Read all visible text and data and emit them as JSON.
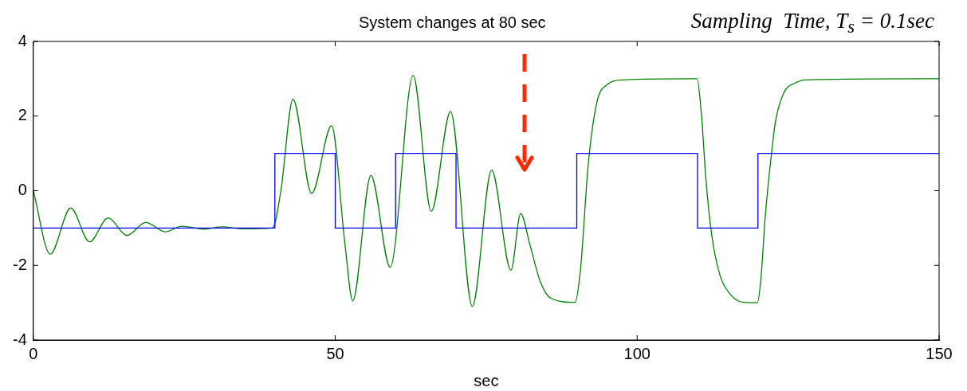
{
  "chart_data": {
    "type": "line",
    "xlabel": "sec",
    "xlim": [
      0,
      150
    ],
    "ylim": [
      -4,
      4
    ],
    "xticks": [
      0,
      50,
      100,
      150
    ],
    "yticks": [
      -4,
      -2,
      0,
      2,
      4
    ],
    "annotations": [
      "System changes at 80 sec",
      "Sampling  Time, T$_{s}$ = 0.1sec"
    ],
    "series": [
      {
        "type": "step",
        "color": "#0000ff",
        "x": [
          0,
          40,
          50,
          60,
          70,
          90,
          110,
          120,
          150
        ],
        "values": [
          -1,
          1,
          -1,
          1,
          -1,
          1,
          -1,
          1,
          1
        ]
      },
      {
        "color": "#008000",
        "x": [
          0,
          2.8,
          6.2,
          9.3,
          12.4,
          15.5,
          18.6,
          21.9,
          24.6,
          28.3,
          31.2,
          34.6,
          39.6,
          41,
          43,
          46.1,
          49.4,
          51.6,
          52.9,
          55.9,
          59.1,
          62.9,
          65.9,
          69.1,
          72.7,
          75.9,
          79.1,
          80.7,
          82.2,
          83.9,
          85.7,
          89.7,
          90.6,
          91.9,
          93.3,
          95,
          97.7,
          109.9,
          110.6,
          111.4,
          112.3,
          113.6,
          115.4,
          117.6,
          119.9,
          120.5,
          121.2,
          122.3,
          122.9,
          124.3,
          126.1,
          127.8,
          150
        ],
        "values": [
          0,
          -1.7,
          -0.46,
          -1.37,
          -0.73,
          -1.2,
          -0.85,
          -1.1,
          -0.95,
          -1.03,
          -0.97,
          -1.02,
          -1,
          0,
          2.45,
          -0.07,
          1.74,
          -1.42,
          -2.95,
          0.41,
          -2.05,
          3.09,
          -0.55,
          2.12,
          -3.1,
          0.55,
          -2.13,
          -0.61,
          -1.42,
          -2.41,
          -2.88,
          -2.99,
          -2.13,
          0.71,
          2.35,
          2.84,
          2.97,
          3,
          2.13,
          0.28,
          -1.13,
          -2.2,
          -2.77,
          -2.99,
          -3,
          -2.35,
          -0.71,
          1.07,
          1.85,
          2.63,
          2.88,
          2.97,
          3
        ]
      }
    ]
  }
}
